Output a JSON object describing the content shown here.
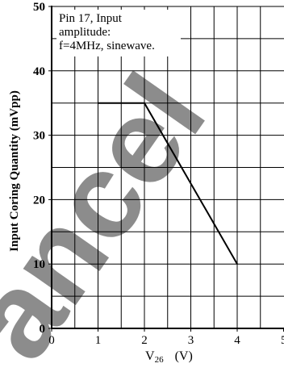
{
  "chart_data": {
    "type": "line",
    "xlabel": "V26 (V)",
    "xlabel_parts": {
      "main": "V",
      "subscript": "26",
      "unit": "(V)"
    },
    "ylabel": "Input Coring Quantity (mVpp)",
    "xlim": [
      0,
      5
    ],
    "ylim": [
      0,
      50
    ],
    "x_ticks": [
      0,
      1,
      2,
      3,
      4,
      5
    ],
    "x_tick_labels": [
      "0",
      "1",
      "2",
      "3",
      "4",
      "5"
    ],
    "y_ticks": [
      0,
      10,
      20,
      30,
      40,
      50
    ],
    "y_tick_labels": [
      "0",
      "10",
      "20",
      "30",
      "40",
      "50"
    ],
    "grid": true,
    "annotation_lines": [
      "Pin 17, Input",
      "amplitude:",
      "f=4MHz, sinewave."
    ],
    "series": [
      {
        "x": [
          1.0,
          2.0,
          4.0
        ],
        "y": [
          35,
          35,
          10
        ]
      }
    ]
  },
  "watermark": {
    "text": "ancel",
    "color": "#f5a6b4"
  },
  "colors": {
    "line": "#000000",
    "grid": "#000000",
    "background": "#ffffff"
  }
}
